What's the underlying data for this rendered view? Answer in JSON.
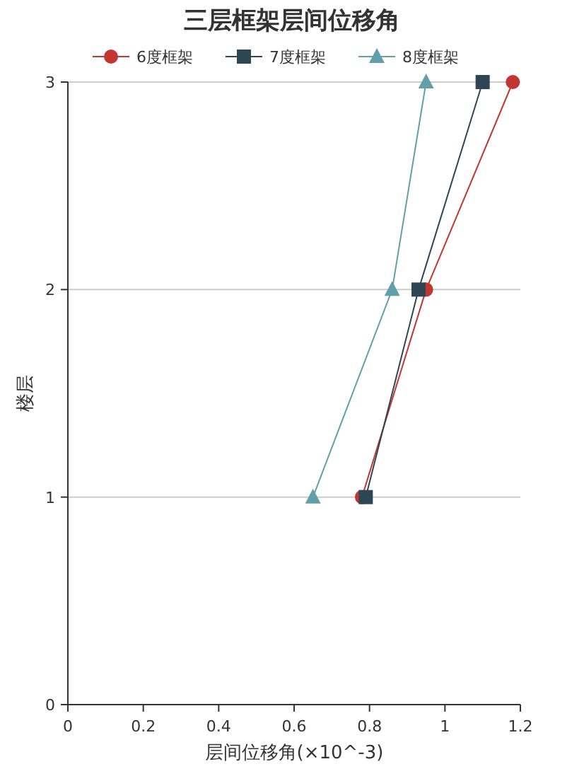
{
  "chart_data": {
    "type": "line",
    "title": "三层框架层间位移角",
    "xlabel": "层间位移角(×10^-3)",
    "ylabel": "楼层",
    "xlim": [
      0,
      1.2
    ],
    "xticks": [
      0,
      0.2,
      0.4,
      0.6,
      0.8,
      1,
      1.2
    ],
    "ylim": [
      0,
      3
    ],
    "yticks": [
      0,
      1,
      2,
      3
    ],
    "grid": "y",
    "legend": "top",
    "series": [
      {
        "name": "6度框架",
        "color": "#c23531",
        "marker": "circle",
        "x": [
          0.78,
          0.95,
          1.18
        ],
        "values": [
          1,
          2,
          3
        ]
      },
      {
        "name": "7度框架",
        "color": "#2f4554",
        "marker": "square",
        "x": [
          0.79,
          0.93,
          1.1
        ],
        "values": [
          1,
          2,
          3
        ]
      },
      {
        "name": "8度框架",
        "color": "#61a0a8",
        "marker": "triangle",
        "x": [
          0.65,
          0.86,
          0.95
        ],
        "values": [
          1,
          2,
          3
        ]
      }
    ]
  }
}
